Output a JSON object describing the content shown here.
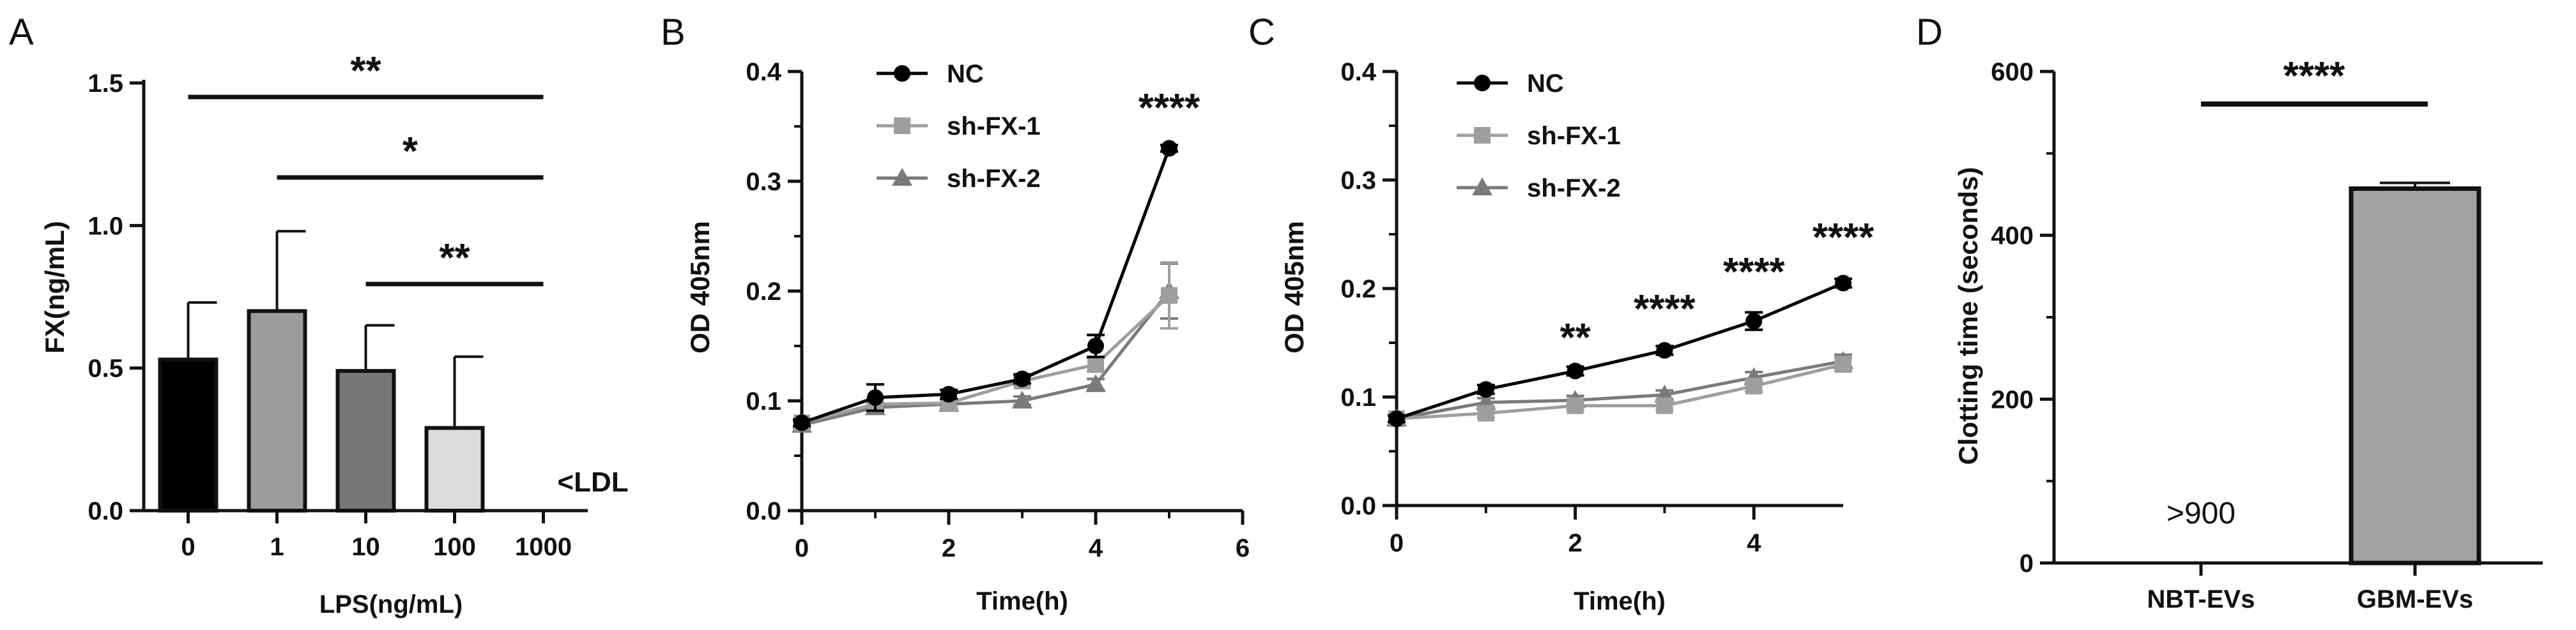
{
  "chart_data": [
    {
      "panel": "A",
      "type": "bar",
      "xlabel": "LPS(ng/mL)",
      "ylabel": "FX(ng/mL)",
      "ylim": [
        0,
        1.5
      ],
      "yticks": [
        "0.0",
        "0.5",
        "1.0",
        "1.5"
      ],
      "categories": [
        "0",
        "1",
        "10",
        "100",
        "1000"
      ],
      "values": [
        0.53,
        0.7,
        0.49,
        0.29,
        null
      ],
      "errors": [
        0.2,
        0.28,
        0.16,
        0.25,
        null
      ],
      "colors": [
        "#000000",
        "#9c9c9c",
        "#777777",
        "#dcdcdc",
        "#ffffff"
      ],
      "annotations": [
        {
          "category": "1000",
          "text": "<LDL"
        }
      ],
      "significance": [
        {
          "from": "0",
          "to": "1000",
          "label": "**"
        },
        {
          "from": "1",
          "to": "1000",
          "label": "*"
        },
        {
          "from": "10",
          "to": "1000",
          "label": "**"
        }
      ]
    },
    {
      "panel": "B",
      "type": "line",
      "xlabel": "Time(h)",
      "ylabel": "OD 405nm",
      "xlim": [
        0,
        6
      ],
      "ylim": [
        0,
        0.4
      ],
      "xticks": [
        "0",
        "2",
        "4",
        "6"
      ],
      "yticks": [
        "0.0",
        "0.1",
        "0.2",
        "0.3",
        "0.4"
      ],
      "x": [
        0,
        1,
        2,
        3,
        4,
        5
      ],
      "series": [
        {
          "name": "NC",
          "values": [
            0.08,
            0.103,
            0.106,
            0.12,
            0.15,
            0.33
          ],
          "errors": [
            0.003,
            0.012,
            0.004,
            0.004,
            0.01,
            0.003
          ],
          "color": "#000000",
          "marker": "circle"
        },
        {
          "name": "sh-FX-1",
          "values": [
            0.08,
            0.097,
            0.098,
            0.118,
            0.133,
            0.196
          ],
          "errors": [
            0.003,
            0.005,
            0.004,
            0.004,
            0.006,
            0.03
          ],
          "color": "#9e9e9e",
          "marker": "square"
        },
        {
          "name": "sh-FX-2",
          "values": [
            0.078,
            0.094,
            0.097,
            0.1,
            0.115,
            0.2
          ],
          "errors": [
            0.003,
            0.004,
            0.004,
            0.004,
            0.005,
            0.025
          ],
          "color": "#7a7a7a",
          "marker": "triangle"
        }
      ],
      "significance": [
        {
          "x": 5,
          "label": "****"
        }
      ]
    },
    {
      "panel": "C",
      "type": "line",
      "xlabel": "Time(h)",
      "ylabel": "OD 405nm",
      "xlim": [
        0,
        5
      ],
      "ylim": [
        0,
        0.4
      ],
      "xticks": [
        "0",
        "2",
        "4"
      ],
      "yticks": [
        "0.0",
        "0.1",
        "0.2",
        "0.3",
        "0.4"
      ],
      "x": [
        0,
        1,
        2,
        3,
        4,
        5
      ],
      "series": [
        {
          "name": "NC",
          "values": [
            0.08,
            0.107,
            0.124,
            0.143,
            0.17,
            0.205
          ],
          "errors": [
            0.003,
            0.004,
            0.004,
            0.004,
            0.008,
            0.004
          ],
          "color": "#000000",
          "marker": "circle"
        },
        {
          "name": "sh-FX-1",
          "values": [
            0.08,
            0.085,
            0.092,
            0.092,
            0.11,
            0.13
          ],
          "errors": [
            0.003,
            0.004,
            0.004,
            0.004,
            0.005,
            0.006
          ],
          "color": "#9e9e9e",
          "marker": "square"
        },
        {
          "name": "sh-FX-2",
          "values": [
            0.08,
            0.095,
            0.097,
            0.102,
            0.118,
            0.133
          ],
          "errors": [
            0.003,
            0.004,
            0.004,
            0.004,
            0.005,
            0.006
          ],
          "color": "#7a7a7a",
          "marker": "triangle"
        }
      ],
      "significance": [
        {
          "x": 2,
          "label": "**"
        },
        {
          "x": 3,
          "label": "****"
        },
        {
          "x": 4,
          "label": "****"
        },
        {
          "x": 5,
          "label": "****"
        }
      ]
    },
    {
      "panel": "D",
      "type": "bar",
      "xlabel": "",
      "ylabel": "Clotting time (seconds)",
      "ylim": [
        0,
        600
      ],
      "yticks": [
        "0",
        "200",
        "400",
        "600"
      ],
      "categories": [
        "NBT-EVs",
        "GBM-EVs"
      ],
      "values": [
        null,
        457
      ],
      "errors": [
        null,
        7
      ],
      "colors": [
        "#ffffff",
        "#a3a3a3"
      ],
      "annotations": [
        {
          "category": "NBT-EVs",
          "text": ">900"
        }
      ],
      "significance": [
        {
          "from": "NBT-EVs",
          "to": "GBM-EVs",
          "label": "****"
        }
      ]
    }
  ]
}
